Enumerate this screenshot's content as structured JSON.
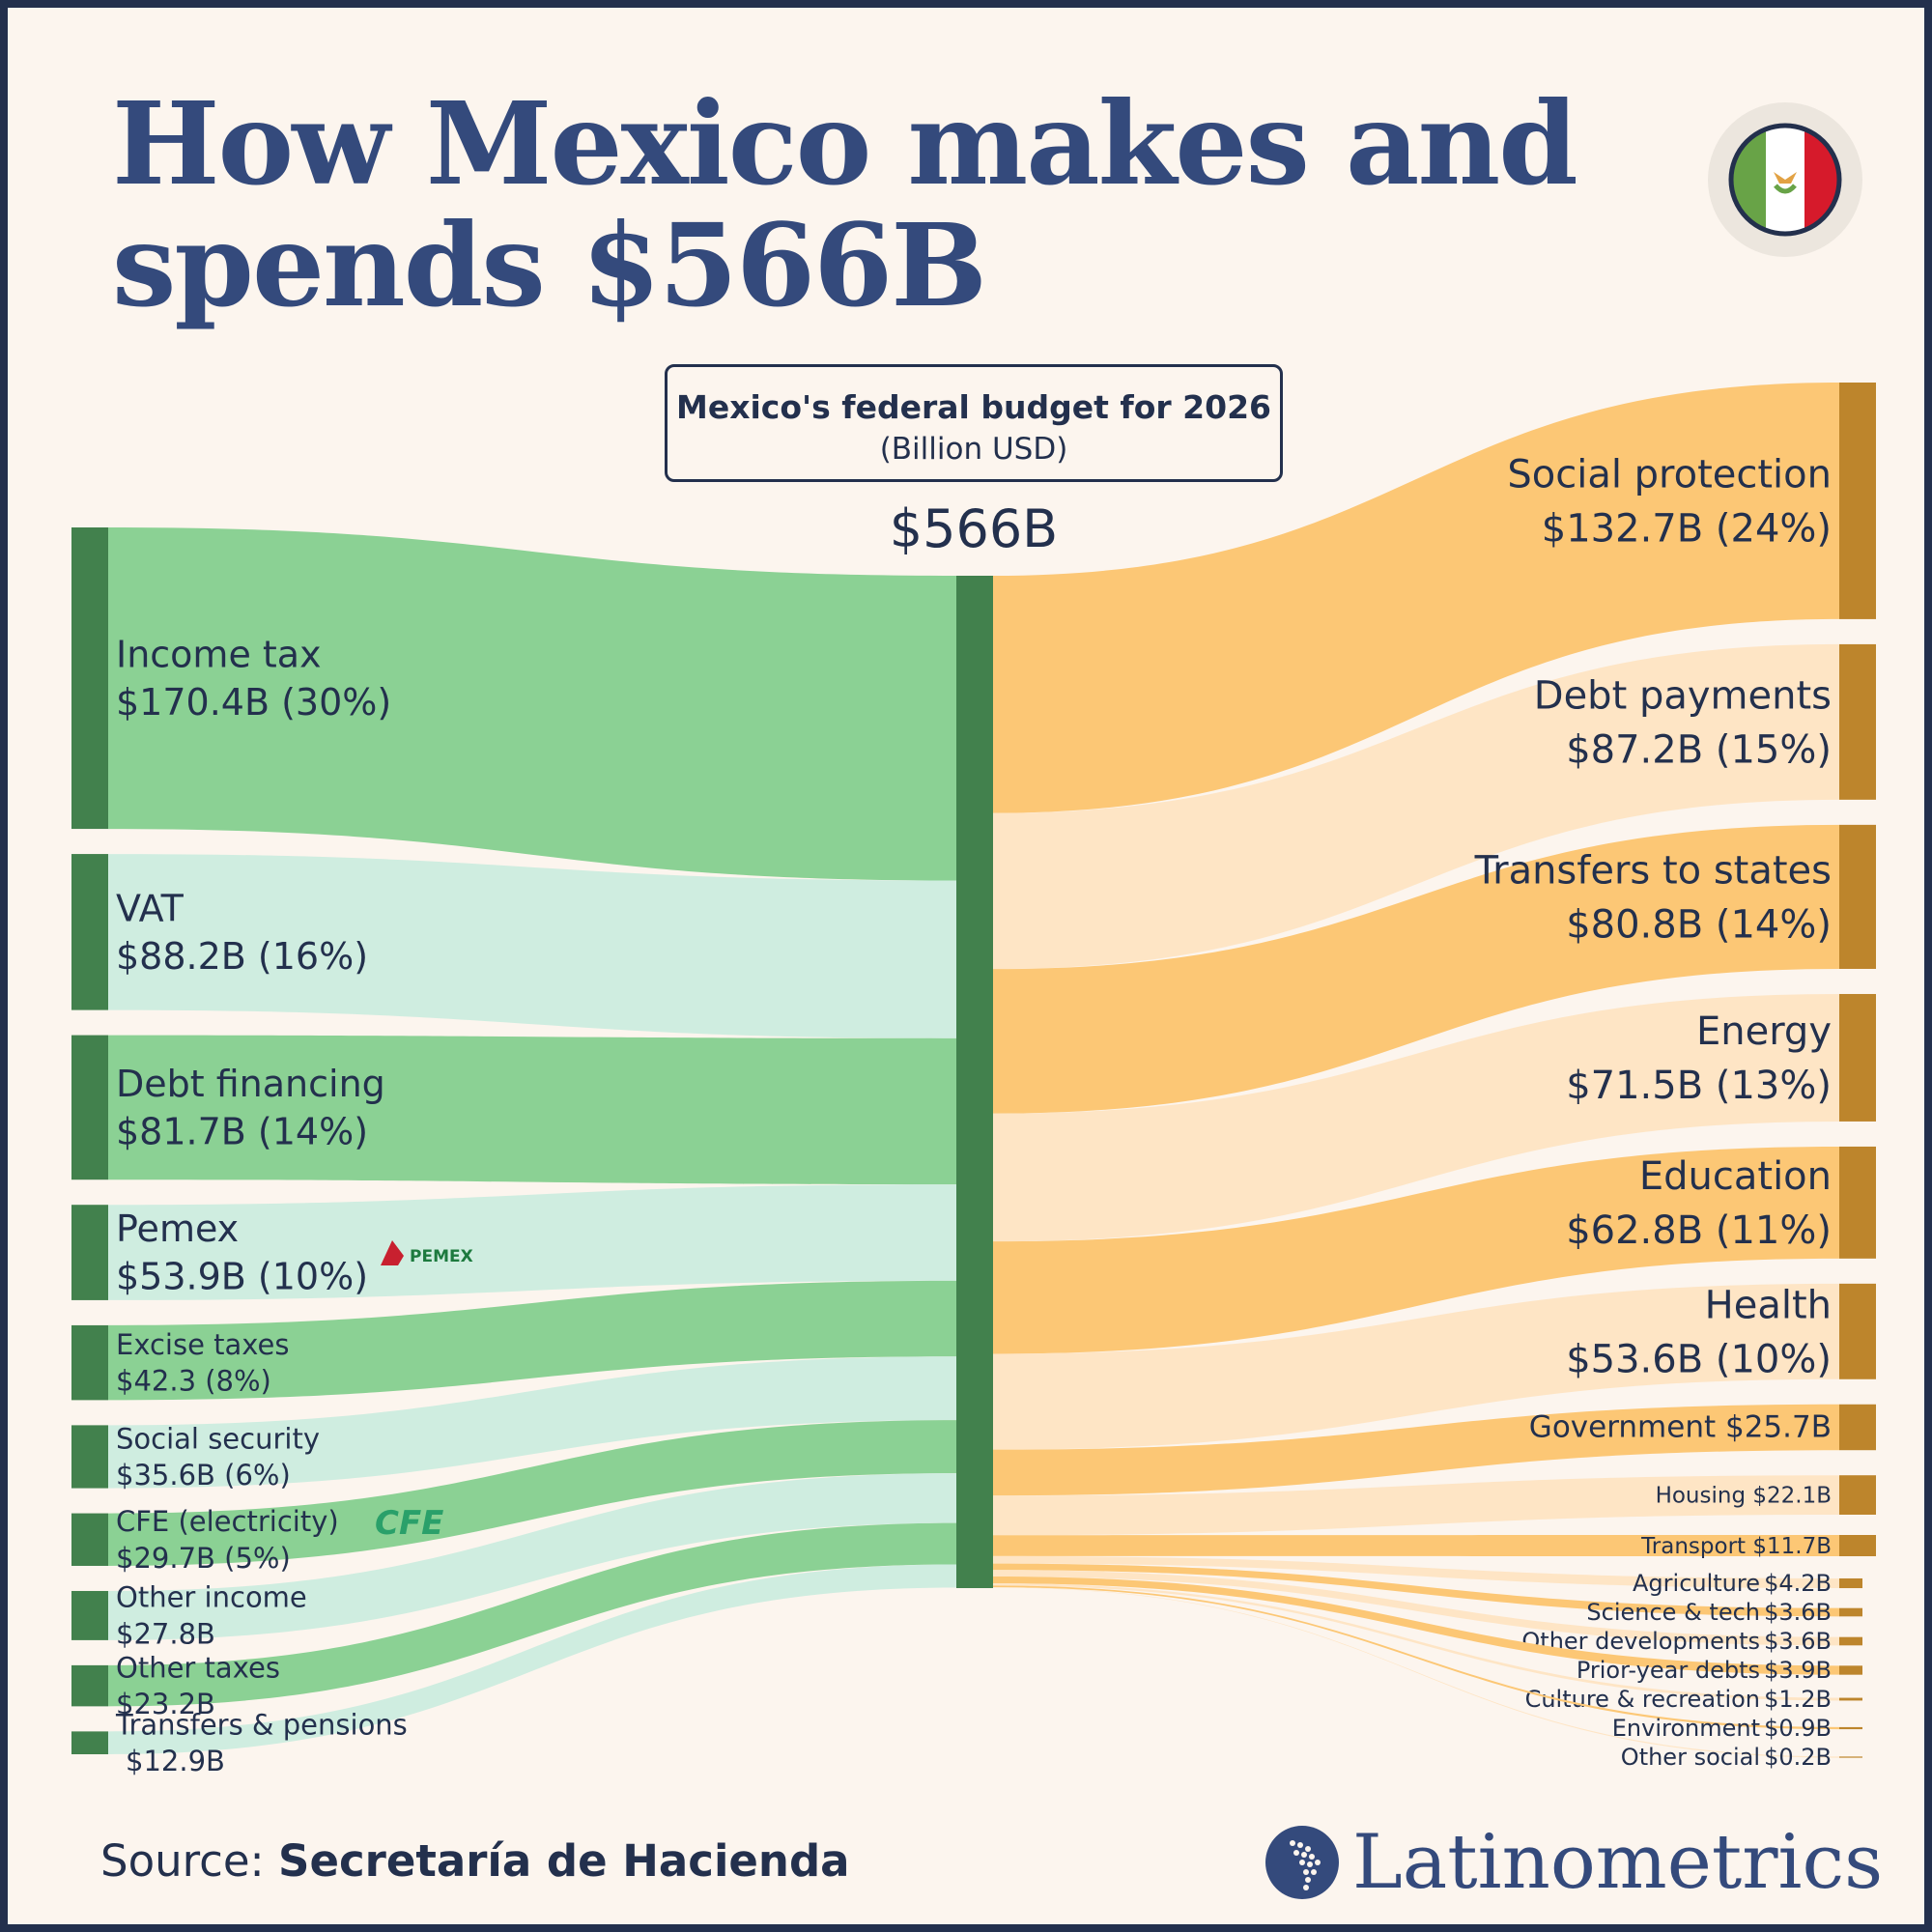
{
  "header": {
    "title_line1": "How Mexico makes and",
    "title_line2": "spends $566B"
  },
  "budget_box": {
    "title": "Mexico's federal budget for 2026",
    "unit": "(Billion USD)"
  },
  "total_label": "$566B",
  "logos": {
    "pemex": "PEMEX",
    "cfe": "CFE"
  },
  "footer": {
    "source_prefix": "Source: ",
    "source_name": "Secretaría de Hacienda",
    "brand": "Latinometrics"
  },
  "colors": {
    "background": "#fcf5ee",
    "navy": "#23304d",
    "title_blue": "#344a7c",
    "income_node": "#42814d",
    "income_flow_dark": "#8bd194",
    "income_flow_light": "#cfede0",
    "spend_node": "#bd852c",
    "spend_flow_dark": "#fcc775",
    "spend_flow_light": "#fee5c5",
    "flag_green": "#68a347",
    "flag_red": "#d61a2b"
  },
  "chart_data": {
    "type": "sankey",
    "title": "Mexico's federal budget for 2026",
    "unit": "Billion USD",
    "total": 566,
    "sources": [
      {
        "name": "Income tax",
        "value": 170.4,
        "value_label": "$170.4B (30%)"
      },
      {
        "name": "VAT",
        "value": 88.2,
        "value_label": "$88.2B (16%)"
      },
      {
        "name": "Debt financing",
        "value": 81.7,
        "value_label": "$81.7B (14%)"
      },
      {
        "name": "Pemex",
        "value": 53.9,
        "value_label": "$53.9B (10%)"
      },
      {
        "name": "Excise taxes",
        "value": 42.3,
        "value_label": "$42.3 (8%)"
      },
      {
        "name": "Social security",
        "value": 35.6,
        "value_label": "$35.6B (6%)"
      },
      {
        "name": "CFE (electricity)",
        "value": 29.7,
        "value_label": "$29.7B (5%)"
      },
      {
        "name": "Other income",
        "value": 27.8,
        "value_label": "$27.8B"
      },
      {
        "name": "Other taxes",
        "value": 23.2,
        "value_label": "$23.2B"
      },
      {
        "name": "Transfers & pensions",
        "value": 12.9,
        "value_label": "$12.9B"
      }
    ],
    "targets": [
      {
        "name": "Social protection",
        "value": 132.7,
        "value_label": "$132.7B (24%)"
      },
      {
        "name": "Debt payments",
        "value": 87.2,
        "value_label": "$87.2B (15%)"
      },
      {
        "name": "Transfers to states",
        "value": 80.8,
        "value_label": "$80.8B (14%)"
      },
      {
        "name": "Energy",
        "value": 71.5,
        "value_label": "$71.5B (13%)"
      },
      {
        "name": "Education",
        "value": 62.8,
        "value_label": "$62.8B (11%)"
      },
      {
        "name": "Health",
        "value": 53.6,
        "value_label": "$53.6B (10%)"
      },
      {
        "name": "Government",
        "value": 25.7,
        "value_label": "$25.7B"
      },
      {
        "name": "Housing",
        "value": 22.1,
        "value_label": "$22.1B"
      },
      {
        "name": "Transport",
        "value": 11.7,
        "value_label": "$11.7B"
      },
      {
        "name": "Agriculture",
        "value": 4.2,
        "value_label": "$4.2B"
      },
      {
        "name": "Science & tech",
        "value": 3.6,
        "value_label": "$3.6B"
      },
      {
        "name": "Other developments",
        "value": 3.6,
        "value_label": "$3.6B"
      },
      {
        "name": "Prior-year debts",
        "value": 3.9,
        "value_label": "$3.9B"
      },
      {
        "name": "Culture & recreation",
        "value": 1.2,
        "value_label": "$1.2B"
      },
      {
        "name": "Environment",
        "value": 0.9,
        "value_label": "$0.9B"
      },
      {
        "name": "Other social",
        "value": 0.2,
        "value_label": "$0.2B"
      }
    ]
  }
}
